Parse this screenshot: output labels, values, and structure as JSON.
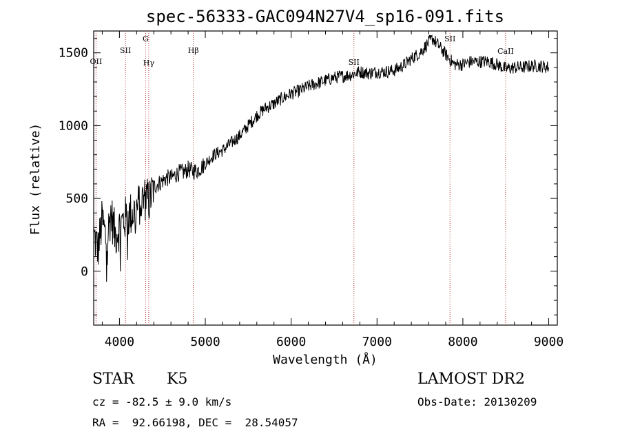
{
  "chart_data": {
    "type": "line",
    "title": "spec-56333-GAC094N27V4_sp16-091.fits",
    "xlabel": "Wavelength (Å)",
    "ylabel": "Flux (relative)",
    "xlim": [
      3700,
      9100
    ],
    "ylim": [
      -370,
      1650
    ],
    "xticks": [
      4000,
      5000,
      6000,
      7000,
      8000,
      9000
    ],
    "yticks": [
      0,
      500,
      1000,
      1500
    ],
    "grid": false,
    "series": [
      {
        "x": [
          3700,
          3750,
          3800,
          3850,
          3900,
          3950,
          4000,
          4050,
          4100,
          4150,
          4200,
          4250,
          4300,
          4350,
          4400,
          4450,
          4500,
          4550,
          4600,
          4650,
          4700,
          4750,
          4800,
          4850,
          4900,
          4950,
          5000,
          5100,
          5200,
          5300,
          5400,
          5500,
          5600,
          5700,
          5800,
          5900,
          6000,
          6100,
          6200,
          6300,
          6400,
          6500,
          6600,
          6700,
          6800,
          6900,
          7000,
          7100,
          7200,
          7300,
          7400,
          7500,
          7600,
          7650,
          7700,
          7800,
          7900,
          8000,
          8100,
          8200,
          8300,
          8400,
          8500,
          8600,
          8700,
          8800,
          8900,
          9000
        ],
        "y": [
          250,
          150,
          350,
          200,
          400,
          250,
          300,
          350,
          380,
          400,
          430,
          480,
          500,
          480,
          580,
          600,
          620,
          640,
          640,
          660,
          680,
          680,
          700,
          690,
          690,
          710,
          740,
          800,
          830,
          880,
          930,
          1000,
          1070,
          1120,
          1150,
          1190,
          1220,
          1240,
          1270,
          1290,
          1310,
          1330,
          1340,
          1350,
          1370,
          1360,
          1370,
          1370,
          1380,
          1410,
          1460,
          1500,
          1570,
          1600,
          1560,
          1490,
          1420,
          1420,
          1440,
          1440,
          1440,
          1420,
          1390,
          1400,
          1400,
          1410,
          1410,
          1400
        ]
      }
    ],
    "spectral_lines": [
      {
        "label": "OII",
        "wave": 3727
      },
      {
        "label": "SII",
        "wave": 4070
      },
      {
        "label": "G",
        "wave": 4305
      },
      {
        "label": "Hγ",
        "wave": 4341
      },
      {
        "label": "Hβ",
        "wave": 4861
      },
      {
        "label": "SII",
        "wave": 6731
      },
      {
        "label": "SII",
        "wave": 7850
      },
      {
        "label": "CaII",
        "wave": 8498
      }
    ]
  },
  "info": {
    "object_type": "STAR",
    "subclass": "K5",
    "survey": "LAMOST DR2",
    "cz": "cz = -82.5 ± 9.0 km/s",
    "obs_date": "Obs-Date: 20130209",
    "radec": "RA =  92.66198, DEC =  28.54057"
  }
}
